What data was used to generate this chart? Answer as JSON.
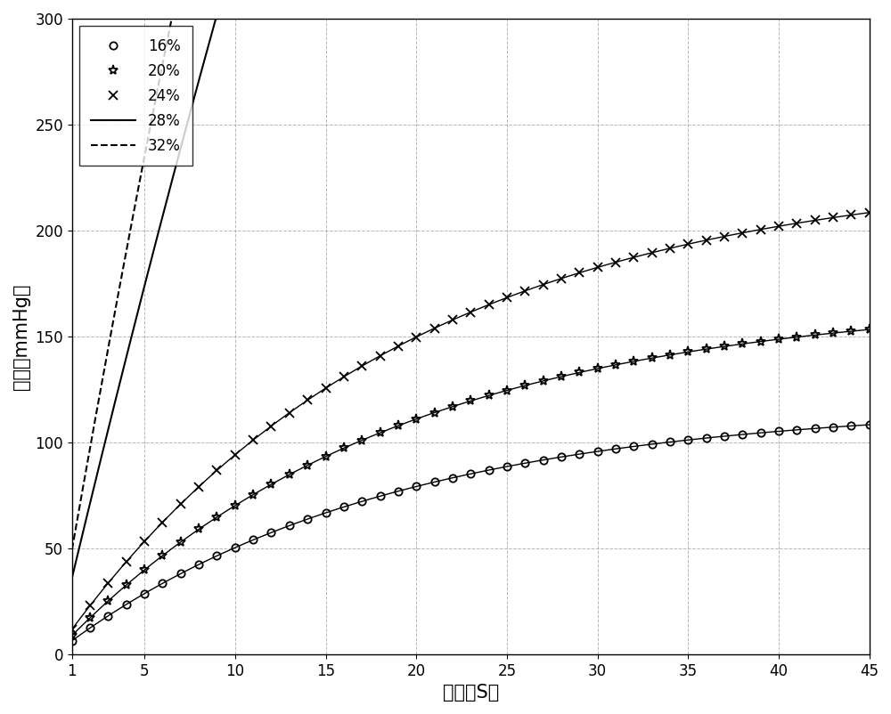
{
  "title": "",
  "xlabel": "时间（S）",
  "ylabel": "压力（mmHg）",
  "xlim": [
    1,
    45
  ],
  "ylim": [
    0,
    300
  ],
  "xticks": [
    1,
    5,
    10,
    15,
    20,
    25,
    30,
    35,
    40,
    45
  ],
  "yticks": [
    0,
    50,
    100,
    150,
    200,
    250,
    300
  ],
  "grid_color": "#999999",
  "background_color": "#ffffff",
  "series": [
    {
      "label": "16%",
      "p_max": 118,
      "tau": 18.0,
      "color": "#000000",
      "linestyle": "-",
      "marker": "o",
      "markersize": 6,
      "linewidth": 1.0
    },
    {
      "label": "20%",
      "p_max": 168,
      "tau": 18.5,
      "color": "#000000",
      "linestyle": "-",
      "marker": "*",
      "markersize": 8,
      "linewidth": 1.0
    },
    {
      "label": "24%",
      "p_max": 230,
      "tau": 19.0,
      "color": "#000000",
      "linestyle": "-",
      "marker": "x",
      "markersize": 7,
      "linewidth": 1.0
    },
    {
      "label": "28%",
      "p_max": 2000,
      "tau": 55.0,
      "color": "#000000",
      "linestyle": "-",
      "marker": "",
      "markersize": 0,
      "linewidth": 1.5
    },
    {
      "label": "32%",
      "p_max": 2000,
      "tau": 40.0,
      "color": "#000000",
      "linestyle": "--",
      "marker": "",
      "markersize": 0,
      "linewidth": 1.5
    }
  ],
  "legend_loc": "upper left",
  "legend_fontsize": 12,
  "axis_fontsize": 15,
  "tick_fontsize": 12
}
